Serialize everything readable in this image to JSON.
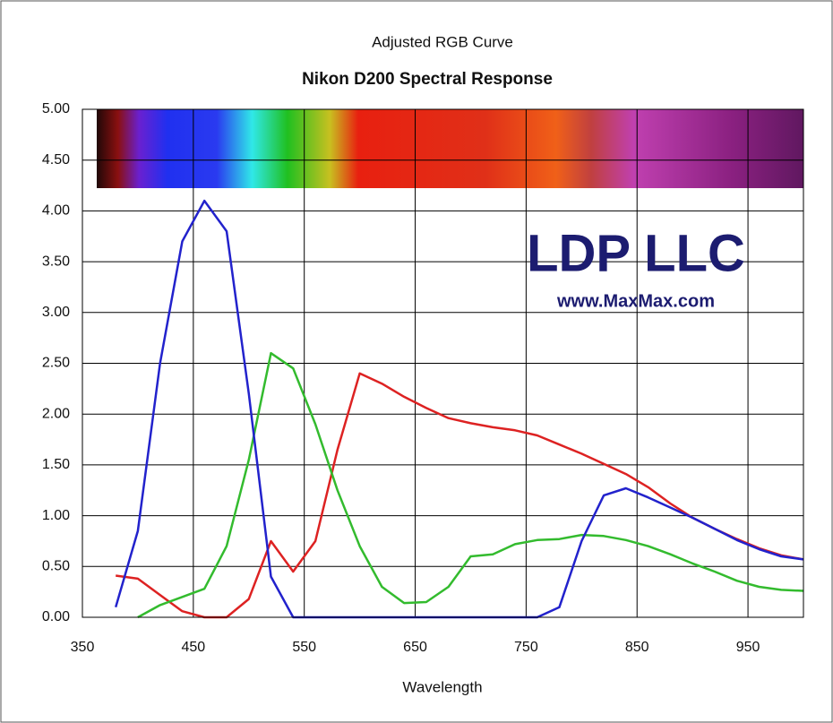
{
  "chart_data": {
    "type": "line",
    "title": "Adjusted RGB Curve",
    "subtitle": "Nikon D200 Spectral Response",
    "x_label": "Wavelength",
    "annotations": [
      "LDP LLC",
      "www.MaxMax.com"
    ],
    "x": [
      380,
      400,
      420,
      440,
      460,
      480,
      500,
      520,
      540,
      560,
      580,
      600,
      620,
      640,
      660,
      680,
      700,
      720,
      740,
      760,
      780,
      800,
      820,
      840,
      860,
      880,
      900,
      920,
      940,
      960,
      980,
      1000
    ],
    "series": [
      {
        "name": "Red",
        "color": "#dd2222",
        "values": [
          0.41,
          0.38,
          0.22,
          0.06,
          0,
          0,
          0.18,
          0.75,
          0.45,
          0.75,
          1.65,
          2.4,
          2.3,
          2.17,
          2.06,
          1.96,
          1.91,
          1.87,
          1.84,
          1.79,
          1.7,
          1.61,
          1.51,
          1.41,
          1.28,
          1.12,
          0.98,
          0.87,
          0.77,
          0.68,
          0.61,
          0.57
        ]
      },
      {
        "name": "Green",
        "color": "#33bb2e",
        "values": [
          null,
          0,
          0.12,
          0.2,
          0.28,
          0.7,
          1.55,
          2.6,
          2.45,
          1.9,
          1.25,
          0.7,
          0.3,
          0.14,
          0.15,
          0.3,
          0.6,
          0.62,
          0.72,
          0.76,
          0.77,
          0.81,
          0.8,
          0.76,
          0.7,
          0.62,
          0.53,
          0.45,
          0.36,
          0.3,
          0.27,
          0.26
        ]
      },
      {
        "name": "Blue",
        "color": "#2222cc",
        "values": [
          0.1,
          0.85,
          2.5,
          3.7,
          4.1,
          3.8,
          2.2,
          0.4,
          0,
          0,
          0,
          0,
          0,
          0,
          0,
          0,
          0,
          0,
          0,
          0,
          0.1,
          0.75,
          1.2,
          1.27,
          1.18,
          1.08,
          0.98,
          0.87,
          0.76,
          0.67,
          0.6,
          0.57
        ]
      }
    ],
    "xlim": [
      350,
      1000
    ],
    "xticks": [
      350,
      450,
      550,
      650,
      750,
      850,
      950
    ],
    "ylim": [
      0,
      5
    ],
    "yticks": [
      {
        "value": 0,
        "label": "0.00"
      },
      {
        "value": 0.5,
        "label": "0.50"
      },
      {
        "value": 1,
        "label": "1.00"
      },
      {
        "value": 1.5,
        "label": "1.50"
      },
      {
        "value": 2,
        "label": "2.00"
      },
      {
        "value": 2.5,
        "label": "2.50"
      },
      {
        "value": 3,
        "label": "3.00"
      },
      {
        "value": 3.5,
        "label": "3.50"
      },
      {
        "value": 4,
        "label": "4.00"
      },
      {
        "value": 4.5,
        "label": "4.50"
      },
      {
        "value": 5,
        "label": "5.00"
      }
    ],
    "grid": true
  }
}
